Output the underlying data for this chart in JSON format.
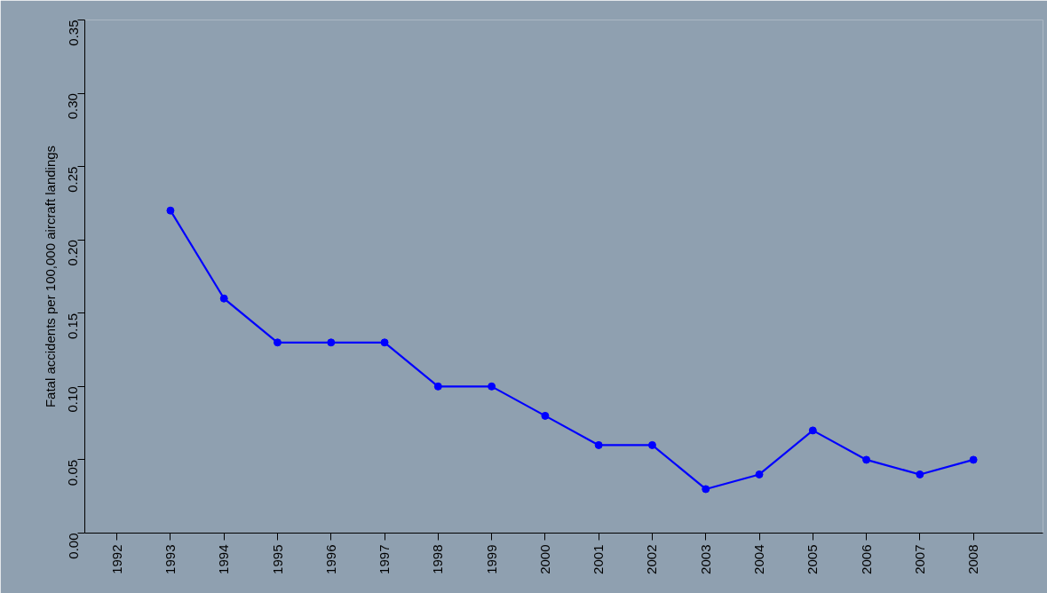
{
  "chart_data": {
    "type": "line",
    "ylabel": "Fatal accidents per 100,000 aircraft landings",
    "x": [
      1993,
      1994,
      1995,
      1996,
      1997,
      1998,
      1999,
      2000,
      2001,
      2002,
      2003,
      2004,
      2005,
      2006,
      2007,
      2008
    ],
    "series": [
      {
        "color": "#0000ff",
        "values": [
          0.22,
          0.16,
          0.13,
          0.13,
          0.13,
          0.1,
          0.1,
          0.08,
          0.06,
          0.06,
          0.03,
          0.04,
          0.07,
          0.05,
          0.04,
          0.05
        ]
      }
    ],
    "xlim": [
      1991.4,
      2009.3
    ],
    "xticks": [
      1992,
      1993,
      1994,
      1995,
      1996,
      1997,
      1998,
      1999,
      2000,
      2001,
      2002,
      2003,
      2004,
      2005,
      2006,
      2007,
      2008
    ],
    "ylim": [
      0,
      0.35
    ],
    "yticks": [
      {
        "value": 0,
        "label": "0.00"
      },
      {
        "value": 0.05,
        "label": "0.05"
      },
      {
        "value": 0.1,
        "label": "0.10"
      },
      {
        "value": 0.15,
        "label": "0.15"
      },
      {
        "value": 0.2,
        "label": "0.20"
      },
      {
        "value": 0.25,
        "label": "0.25"
      },
      {
        "value": 0.3,
        "label": "0.30"
      },
      {
        "value": 0.35,
        "label": "0.35"
      }
    ],
    "grid": false,
    "marker": "circle",
    "line_style": "solid"
  }
}
